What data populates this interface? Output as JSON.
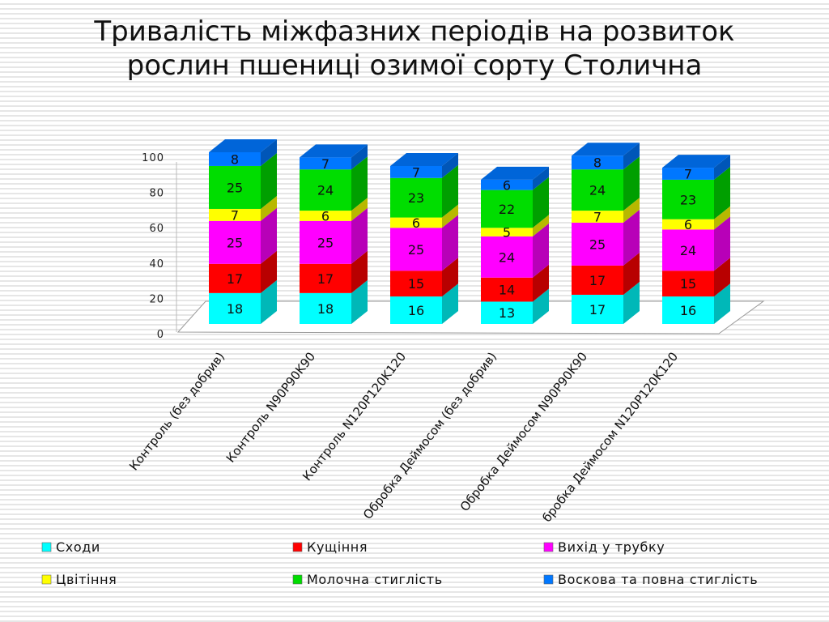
{
  "title_lines": [
    "Тривалість міжфазних періодів на розвиток",
    "рослин пшениці озимої сорту Столична"
  ],
  "chart_data": {
    "type": "bar",
    "stacked": true,
    "three_d": true,
    "categories": [
      "Контроль (без добрив)",
      "Контроль N90P90K90",
      "Контроль N120P120K120",
      "Обробка Деймосом (без добрив)",
      "Обробка Деймосом N90P90K90",
      "бробка Деймосом N120P120K120"
    ],
    "series": [
      {
        "name": "Сходи",
        "color": "#00ffff",
        "values": [
          18,
          18,
          16,
          13,
          17,
          16
        ]
      },
      {
        "name": "Кущіння",
        "color": "#ff0000",
        "values": [
          17,
          17,
          15,
          14,
          17,
          15
        ]
      },
      {
        "name": "Вихід у трубку",
        "color": "#ff00ff",
        "values": [
          25,
          25,
          25,
          24,
          25,
          24
        ]
      },
      {
        "name": "Цвітіння",
        "color": "#ffff00",
        "values": [
          7,
          6,
          6,
          5,
          7,
          6
        ]
      },
      {
        "name": "Молочна стиглість",
        "color": "#00dd00",
        "values": [
          25,
          24,
          23,
          22,
          24,
          23
        ]
      },
      {
        "name": "Воскова та повна стиглість",
        "color": "#0077ff",
        "values": [
          8,
          7,
          7,
          6,
          8,
          7
        ]
      }
    ],
    "y_ticks": [
      "0",
      "20",
      "40",
      "60",
      "80",
      "100"
    ],
    "ylim": [
      0,
      100
    ],
    "grid": false,
    "legend_position": "bottom"
  }
}
